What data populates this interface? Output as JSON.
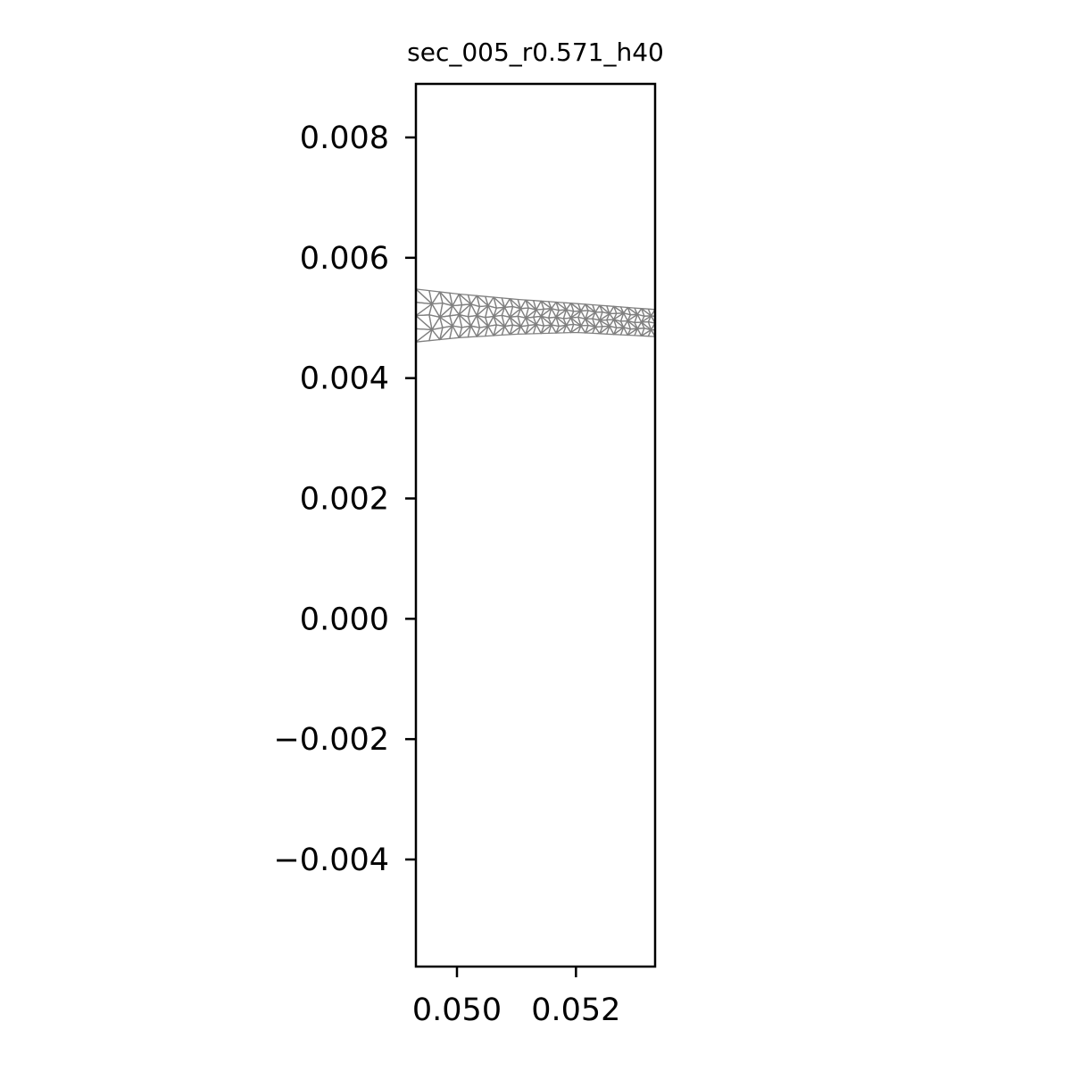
{
  "chart_data": {
    "type": "scatter",
    "title": "sec_005_r0.571_h40",
    "xlabel": "",
    "ylabel": "",
    "xlim": [
      0.04931,
      0.05333
    ],
    "ylim": [
      -0.00578,
      0.00889
    ],
    "x_ticks": [
      {
        "value": 0.05,
        "label": "0.050"
      },
      {
        "value": 0.052,
        "label": "0.052"
      }
    ],
    "y_ticks": [
      {
        "value": 0.008,
        "label": "0.008"
      },
      {
        "value": 0.006,
        "label": "0.006"
      },
      {
        "value": 0.004,
        "label": "0.004"
      },
      {
        "value": 0.002,
        "label": "0.002"
      },
      {
        "value": 0.0,
        "label": "0.000"
      },
      {
        "value": -0.002,
        "label": "−0.002"
      },
      {
        "value": -0.004,
        "label": "−0.004"
      }
    ],
    "grid": false,
    "legend": "none",
    "mesh": {
      "color": "#808080",
      "x_range": [
        0.04931,
        0.05333
      ],
      "upper_edge": {
        "x": [
          0.04931,
          0.05,
          0.051,
          0.052,
          0.05333
        ],
        "y": [
          0.00548,
          0.0054,
          0.00531,
          0.00524,
          0.00514
        ]
      },
      "lower_edge": {
        "x": [
          0.04931,
          0.05,
          0.051,
          0.052,
          0.05333
        ],
        "y": [
          0.0046,
          0.00467,
          0.00473,
          0.00476,
          0.00469
        ]
      },
      "columns": 30,
      "rows": 4
    }
  }
}
